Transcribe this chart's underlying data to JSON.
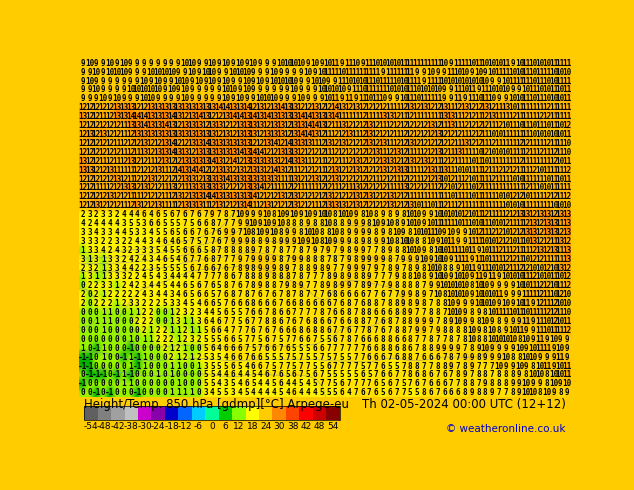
{
  "title_left": "Height/Temp. 850 hPa [gdmp][°C] Arpege-eu",
  "title_right": "Th 02-05-2024 00:00 UTC (12+12)",
  "copyright": "© weatheronline.co.uk",
  "colorbar_colors": [
    "#606060",
    "#808080",
    "#a0a0a0",
    "#c0c0c0",
    "#cc00cc",
    "#8800aa",
    "#0000cc",
    "#0066ff",
    "#00ccff",
    "#00ff99",
    "#00cc00",
    "#88ff00",
    "#ffff00",
    "#ffcc00",
    "#ff8800",
    "#ff4400",
    "#ff0000",
    "#cc0000",
    "#880000"
  ],
  "colorbar_tick_labels": [
    "-54",
    "-48",
    "-42",
    "-38",
    "-30",
    "-24",
    "-18",
    "-12",
    "-6",
    "0",
    "6",
    "12",
    "18",
    "24",
    "30",
    "38",
    "42",
    "48",
    "54"
  ],
  "bg_yellow": "#ffcc00",
  "bg_orange": "#ff8800",
  "bg_green": "#00cc00",
  "contour_color": "#8888aa",
  "number_color": "#000000",
  "title_color": "#000000",
  "copyright_color": "#0000cc",
  "bottom_bg": "#c8c8c8",
  "title_fontsize": 8.5,
  "copyright_fontsize": 7.5,
  "colorbar_label_fontsize": 6.5,
  "map_number_fontsize": 5.5,
  "rows": 38,
  "cols": 72
}
